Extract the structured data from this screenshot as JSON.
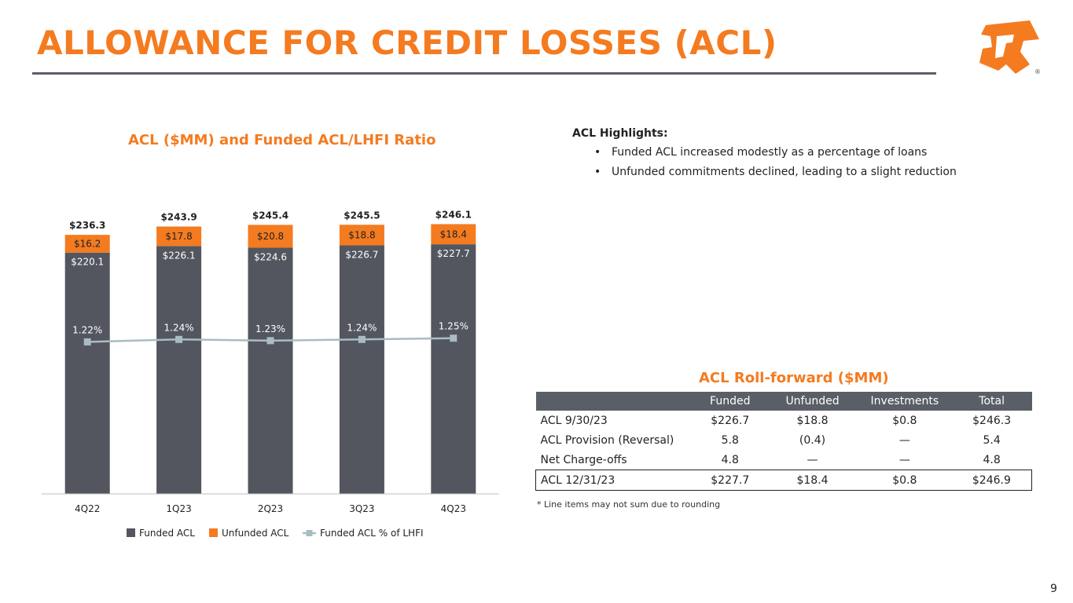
{
  "title": "ALLOWANCE FOR CREDIT LOSSES (ACL)",
  "colors": {
    "accent": "#f47b20",
    "dark_gray": "#53565e",
    "line": "#a9bcc2",
    "rule": "#5a5e66"
  },
  "logo": {
    "icon": "logo-f-icon",
    "registered": "®"
  },
  "chart_title": "ACL ($MM) and Funded ACL/LHFI Ratio",
  "chart_data": {
    "type": "bar",
    "stacked": true,
    "title": "ACL ($MM) and Funded ACL/LHFI Ratio",
    "categories": [
      "4Q22",
      "1Q23",
      "2Q23",
      "3Q23",
      "4Q23"
    ],
    "series": [
      {
        "name": "Funded ACL",
        "color": "#53565e",
        "values": [
          220.1,
          226.1,
          224.6,
          226.7,
          227.7
        ],
        "labels": [
          "$220.1",
          "$226.1",
          "$224.6",
          "$226.7",
          "$227.7"
        ]
      },
      {
        "name": "Unfunded ACL",
        "color": "#f47b20",
        "values": [
          16.2,
          17.8,
          20.8,
          18.8,
          18.4
        ],
        "labels": [
          "$16.2",
          "$17.8",
          "$20.8",
          "$18.8",
          "$18.4"
        ]
      }
    ],
    "totals": [
      236.3,
      243.9,
      245.4,
      245.5,
      246.1
    ],
    "total_labels": [
      "$236.3",
      "$243.9",
      "$245.4",
      "$245.5",
      "$246.1"
    ],
    "line_series": {
      "name": "Funded ACL % of LHFI",
      "color": "#a9bcc2",
      "values": [
        1.22,
        1.24,
        1.23,
        1.24,
        1.25
      ],
      "labels": [
        "1.22%",
        "1.24%",
        "1.23%",
        "1.24%",
        "1.25%"
      ]
    },
    "ylim": [
      0,
      250
    ],
    "line_ylim": [
      0,
      2.2
    ],
    "legend_position": "bottom",
    "grid": false
  },
  "highlights": {
    "heading": "ACL Highlights:",
    "bullet_char": "•",
    "items": [
      "Funded ACL increased modestly as a percentage of loans",
      "Unfunded commitments declined, leading to a slight reduction"
    ]
  },
  "rollforward": {
    "title": "ACL Roll-forward ($MM)",
    "columns": [
      "",
      "Funded",
      "Unfunded",
      "Investments",
      "Total"
    ],
    "rows": [
      [
        "ACL  9/30/23",
        "$226.7",
        "$18.8",
        "$0.8",
        "$246.3"
      ],
      [
        "ACL Provision (Reversal)",
        "5.8",
        "(0.4)",
        "—",
        "5.4"
      ],
      [
        "Net Charge-offs",
        "4.8",
        "—",
        "—",
        "4.8"
      ],
      [
        "ACL  12/31/23",
        "$227.7",
        "$18.4",
        "$0.8",
        "$246.9"
      ]
    ]
  },
  "footnote": "* Line items may not sum due to rounding",
  "page_number": "9"
}
